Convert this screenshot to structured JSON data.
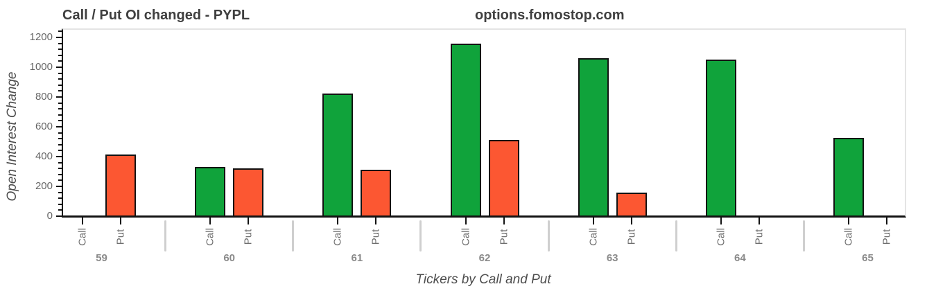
{
  "header": {
    "title": "Call / Put OI changed - PYPL",
    "site": "options.fomostop.com"
  },
  "chart_data": {
    "type": "bar",
    "title": "Call / Put OI changed - PYPL",
    "xlabel": "Tickers by Call and Put",
    "ylabel": "Open Interest Change",
    "categories": [
      "59",
      "60",
      "61",
      "62",
      "63",
      "64",
      "65"
    ],
    "bar_labels": [
      "Call",
      "Put"
    ],
    "series": [
      {
        "name": "Call",
        "color": "#10a33b",
        "values": [
          0,
          325,
          820,
          1155,
          1055,
          1045,
          520
        ]
      },
      {
        "name": "Put",
        "color": "#fc5732",
        "values": [
          410,
          315,
          305,
          505,
          155,
          0,
          0
        ]
      }
    ],
    "ylim": [
      0,
      1260
    ],
    "yticks": [
      0,
      200,
      400,
      600,
      800,
      1000,
      1200
    ],
    "minor_tick_step": 40,
    "grid": false,
    "legend": "none",
    "colors": {
      "call_green": "#10a33b",
      "put_red": "#fc5732",
      "axis_line": "#121212",
      "plot_border": "#e4e4e4",
      "tick_text": "#666666",
      "group_text": "#8a8a8a",
      "title_text": "#3f3f3f",
      "separator": "#cfcfcf"
    }
  }
}
